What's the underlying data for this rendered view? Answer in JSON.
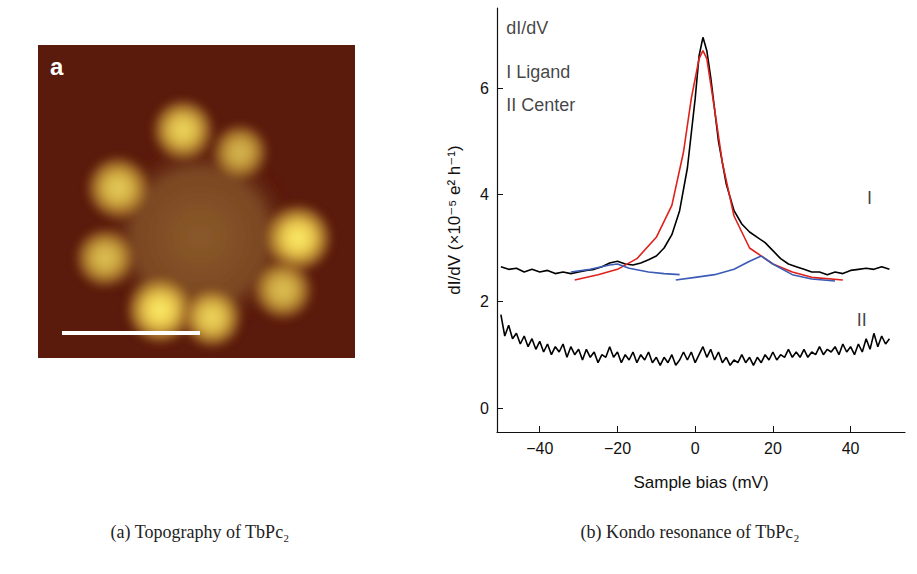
{
  "figure": {
    "panel_a": {
      "letter": "a",
      "caption": "(a) Topography of TbPc₂"
    },
    "panel_b": {
      "caption": "(b) Kondo resonance of TbPc₂"
    }
  },
  "chart_data": {
    "type": "line",
    "x_label": "Sample bias (mV)",
    "y_label": "dI/dV (×10⁻⁵ e² h⁻¹)",
    "xlim": [
      -51,
      54
    ],
    "xticks": [
      {
        "value": -40,
        "label": "−40"
      },
      {
        "value": -20,
        "label": "−20"
      },
      0,
      20,
      40
    ],
    "ylim": [
      -0.45,
      7.5
    ],
    "yticks": [
      0,
      2,
      4,
      6
    ],
    "grid": false,
    "series": [
      {
        "color": "#000000",
        "x": [
          -50,
          -48,
          -46,
          -44,
          -42,
          -40,
          -38,
          -36,
          -34,
          -32,
          -30,
          -28,
          -26,
          -24,
          -22,
          -20,
          -18,
          -16,
          -14,
          -12,
          -10,
          -8,
          -6,
          -4,
          -2,
          0,
          1,
          2,
          3,
          4,
          6,
          8,
          10,
          12,
          14,
          16,
          18,
          20,
          22,
          24,
          26,
          28,
          30,
          32,
          34,
          36,
          38,
          40,
          42,
          44,
          46,
          48,
          50
        ],
        "values": [
          2.65,
          2.6,
          2.62,
          2.55,
          2.6,
          2.55,
          2.58,
          2.52,
          2.55,
          2.52,
          2.55,
          2.58,
          2.6,
          2.65,
          2.72,
          2.75,
          2.7,
          2.68,
          2.72,
          2.78,
          2.85,
          3.0,
          3.25,
          3.7,
          4.5,
          5.8,
          6.6,
          6.95,
          6.7,
          6.2,
          5.0,
          4.2,
          3.7,
          3.45,
          3.3,
          3.2,
          3.1,
          2.95,
          2.8,
          2.7,
          2.65,
          2.6,
          2.55,
          2.55,
          2.5,
          2.55,
          2.52,
          2.58,
          2.6,
          2.62,
          2.6,
          2.65,
          2.6
        ]
      },
      {
        "color": "#e0201a",
        "x": [
          -31,
          -25,
          -20,
          -15,
          -10,
          -6,
          -3,
          -1,
          1,
          2,
          3,
          5,
          7,
          10,
          14,
          20,
          25,
          30,
          38
        ],
        "values": [
          2.4,
          2.5,
          2.6,
          2.8,
          3.2,
          3.8,
          4.8,
          5.8,
          6.55,
          6.7,
          6.55,
          5.6,
          4.6,
          3.6,
          3.0,
          2.7,
          2.55,
          2.45,
          2.4
        ]
      },
      {
        "color": "#3b5bb5",
        "x": [
          -32,
          -27,
          -22,
          -20,
          -17,
          -12,
          -8,
          -4
        ],
        "values": [
          2.55,
          2.6,
          2.68,
          2.7,
          2.62,
          2.55,
          2.52,
          2.5
        ]
      },
      {
        "color": "#3b5bb5",
        "x": [
          -5,
          0,
          5,
          10,
          14,
          17,
          20,
          25,
          30,
          36
        ],
        "values": [
          2.4,
          2.45,
          2.5,
          2.6,
          2.75,
          2.85,
          2.7,
          2.5,
          2.42,
          2.38
        ]
      },
      {
        "color": "#000000",
        "x": [
          -50,
          -49,
          -48,
          -47,
          -46,
          -45,
          -44,
          -43,
          -42,
          -41,
          -40,
          -39,
          -38,
          -37,
          -36,
          -35,
          -34,
          -33,
          -32,
          -31,
          -30,
          -29,
          -28,
          -27,
          -26,
          -25,
          -24,
          -23,
          -22,
          -21,
          -20,
          -19,
          -18,
          -17,
          -16,
          -15,
          -14,
          -13,
          -12,
          -11,
          -10,
          -9,
          -8,
          -7,
          -6,
          -5,
          -4,
          -3,
          -2,
          -1,
          0,
          1,
          2,
          3,
          4,
          5,
          6,
          7,
          8,
          9,
          10,
          11,
          12,
          13,
          14,
          15,
          16,
          17,
          18,
          19,
          20,
          21,
          22,
          23,
          24,
          25,
          26,
          27,
          28,
          29,
          30,
          31,
          32,
          33,
          34,
          35,
          36,
          37,
          38,
          39,
          40,
          41,
          42,
          43,
          44,
          45,
          46,
          47,
          48,
          49,
          50
        ],
        "values": [
          1.75,
          1.35,
          1.55,
          1.3,
          1.4,
          1.2,
          1.35,
          1.15,
          1.3,
          1.1,
          1.25,
          1.05,
          1.2,
          1.0,
          1.15,
          1.05,
          1.2,
          0.95,
          1.15,
          1.0,
          1.1,
          0.9,
          1.1,
          0.95,
          1.05,
          0.85,
          1.0,
          0.95,
          1.15,
          0.95,
          1.05,
          0.85,
          1.0,
          0.9,
          1.05,
          0.85,
          1.0,
          0.9,
          1.05,
          0.85,
          0.95,
          0.8,
          0.95,
          0.85,
          1.0,
          0.8,
          0.9,
          1.05,
          0.9,
          1.05,
          0.85,
          1.0,
          1.15,
          0.95,
          1.1,
          0.9,
          1.05,
          0.85,
          0.95,
          0.8,
          0.9,
          0.85,
          1.0,
          0.85,
          0.95,
          0.8,
          0.95,
          0.85,
          1.0,
          0.9,
          1.05,
          0.9,
          1.0,
          0.95,
          1.1,
          0.95,
          1.05,
          0.95,
          1.1,
          0.95,
          1.05,
          1.0,
          1.15,
          1.0,
          1.1,
          1.05,
          1.15,
          1.0,
          1.2,
          1.05,
          1.15,
          1.0,
          1.2,
          1.05,
          1.3,
          1.1,
          1.4,
          1.15,
          1.35,
          1.2,
          1.3
        ]
      }
    ],
    "annotations": [
      {
        "text": "dI/dV",
        "x": -48.6,
        "y": 7.13
      },
      {
        "text": "I Ligand",
        "x": -48.6,
        "y": 6.3
      },
      {
        "text": "II Center",
        "x": -48.6,
        "y": 5.68
      },
      {
        "text": "I",
        "x": 44.2,
        "y": 3.94
      },
      {
        "text": "II",
        "x": 41.6,
        "y": 1.65
      }
    ]
  }
}
